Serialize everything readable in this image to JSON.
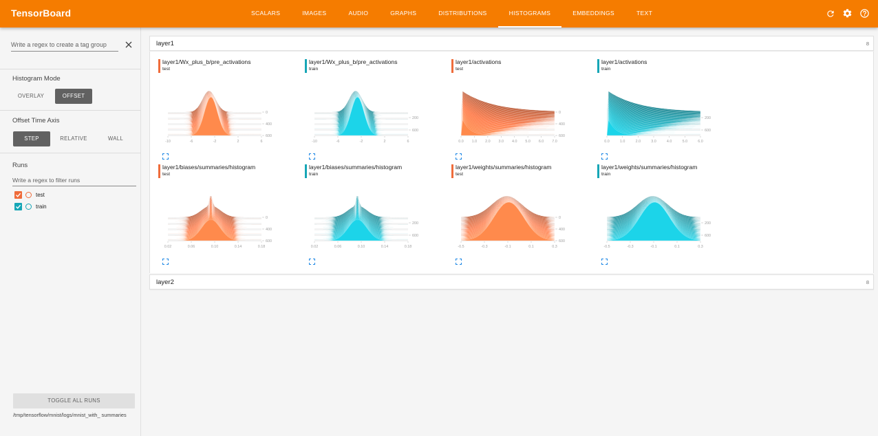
{
  "app": {
    "title": "TensorBoard"
  },
  "nav": {
    "tabs": [
      {
        "label": "SCALARS"
      },
      {
        "label": "IMAGES"
      },
      {
        "label": "AUDIO"
      },
      {
        "label": "GRAPHS"
      },
      {
        "label": "DISTRIBUTIONS"
      },
      {
        "label": "HISTOGRAMS",
        "active": true
      },
      {
        "label": "EMBEDDINGS"
      },
      {
        "label": "TEXT"
      }
    ],
    "icons": [
      "refresh-icon",
      "settings-icon",
      "help-icon"
    ]
  },
  "sidebar": {
    "tag_group_placeholder": "Write a regex to create a tag group",
    "histogram_mode": {
      "title": "Histogram Mode",
      "options": [
        "OVERLAY",
        "OFFSET"
      ],
      "selected": "OFFSET"
    },
    "offset_time_axis": {
      "title": "Offset Time Axis",
      "options": [
        "STEP",
        "RELATIVE",
        "WALL"
      ],
      "selected": "STEP"
    },
    "runs": {
      "title": "Runs",
      "filter_placeholder": "Write a regex to filter runs",
      "items": [
        {
          "name": "test",
          "checked": true,
          "color": "#ef6c3b"
        },
        {
          "name": "train",
          "checked": true,
          "color": "#16a6b6"
        }
      ]
    },
    "toggle_all_label": "TOGGLE ALL RUNS",
    "logdir": "/tmp/tensorflow/mnist/logs/mnist_with_ summaries"
  },
  "colors": {
    "accent": "#f57c00",
    "test": "#ef6c3b",
    "train": "#16a6b6"
  },
  "groups": [
    {
      "name": "layer1",
      "count": "8",
      "expanded": true
    },
    {
      "name": "layer2",
      "count": "8",
      "expanded": false
    }
  ],
  "cards": [
    {
      "title": "layer1/Wx_plus_b/pre_activations",
      "run": "test",
      "color": "#ef6c3b",
      "shape": "normal",
      "peak": 0.45,
      "width": 0.07,
      "xticks": [
        "-10",
        "-6",
        "-2",
        "2",
        "6"
      ],
      "yticks": [
        "0",
        "400",
        "600"
      ]
    },
    {
      "title": "layer1/Wx_plus_b/pre_activations",
      "run": "train",
      "color": "#16a6b6",
      "shape": "normal",
      "peak": 0.45,
      "width": 0.07,
      "xticks": [
        "-10",
        "-6",
        "-2",
        "2",
        "6"
      ],
      "yticks": [
        "200",
        "600"
      ]
    },
    {
      "title": "layer1/activations",
      "run": "test",
      "color": "#ef6c3b",
      "shape": "decay",
      "peak": 0.02,
      "width": 0.0,
      "xticks": [
        "0.0",
        "1.0",
        "2.0",
        "3.0",
        "4.0",
        "5.0",
        "6.0",
        "7.0"
      ],
      "yticks": [
        "0",
        "400",
        "600"
      ]
    },
    {
      "title": "layer1/activations",
      "run": "train",
      "color": "#16a6b6",
      "shape": "decay",
      "peak": 0.02,
      "width": 0.0,
      "xticks": [
        "0.0",
        "1.0",
        "2.0",
        "3.0",
        "4.0",
        "5.0",
        "6.0"
      ],
      "yticks": [
        "200",
        "600"
      ]
    },
    {
      "title": "layer1/biases/summaries/histogram",
      "run": "test",
      "color": "#ef6c3b",
      "shape": "spike",
      "peak": 0.46,
      "width": 0.1,
      "xticks": [
        "0.02",
        "0.06",
        "0.10",
        "0.14",
        "0.18"
      ],
      "yticks": [
        "0",
        "400",
        "600"
      ]
    },
    {
      "title": "layer1/biases/summaries/histogram",
      "run": "train",
      "color": "#16a6b6",
      "shape": "spike",
      "peak": 0.46,
      "width": 0.1,
      "xticks": [
        "0.02",
        "0.06",
        "0.10",
        "0.14",
        "0.18"
      ],
      "yticks": [
        "200",
        "600"
      ]
    },
    {
      "title": "layer1/weights/summaries/histogram",
      "run": "test",
      "color": "#ef6c3b",
      "shape": "normal",
      "peak": 0.5,
      "width": 0.16,
      "xticks": [
        "-0.5",
        "-0.3",
        "-0.1",
        "0.1",
        "0.3"
      ],
      "yticks": [
        "0",
        "400",
        "600"
      ]
    },
    {
      "title": "layer1/weights/summaries/histogram",
      "run": "train",
      "color": "#16a6b6",
      "shape": "normal",
      "peak": 0.5,
      "width": 0.16,
      "xticks": [
        "-0.5",
        "-0.3",
        "-0.1",
        "0.1",
        "0.3"
      ],
      "yticks": [
        "200",
        "600"
      ]
    }
  ]
}
